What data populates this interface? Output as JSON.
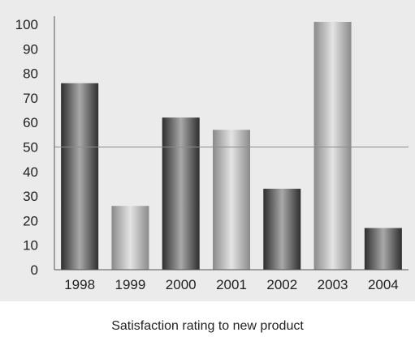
{
  "chart_data": {
    "type": "bar",
    "categories": [
      "1998",
      "1999",
      "2000",
      "2001",
      "2002",
      "2003",
      "2004"
    ],
    "values": [
      76,
      26,
      62,
      57,
      33,
      101,
      17
    ],
    "ylim": [
      0,
      100
    ],
    "yticks": [
      0,
      10,
      20,
      30,
      40,
      50,
      60,
      70,
      80,
      90,
      100
    ],
    "reference_line": 50,
    "grid": false,
    "legend": "none",
    "bar_shades": [
      "dark",
      "light",
      "dark",
      "light",
      "dark",
      "light",
      "dark"
    ],
    "colors": {
      "dark_bar_edge": "#2e2e2e",
      "dark_bar_center": "#a9a9a9",
      "light_bar_edge": "#8a8a8a",
      "light_bar_center": "#e4e4e4",
      "reference_line": "#8c8c8c",
      "axis": "#555555",
      "panel_background": "#ebebeb"
    },
    "xlabel": "",
    "ylabel": "",
    "caption": "Satisfaction rating to new product"
  }
}
